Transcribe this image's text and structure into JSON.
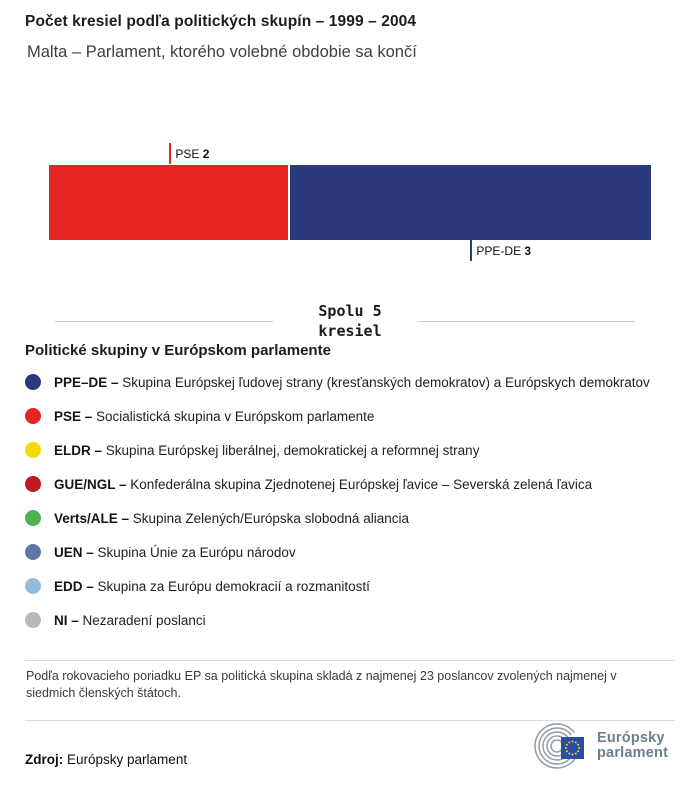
{
  "header": {
    "title": "Počet kresiel podľa politických skupín – 1999 – 2004",
    "subtitle": "Malta – Parlament, ktorého volebné obdobie sa končí"
  },
  "chart_data": {
    "type": "bar",
    "variant": "horizontal-stacked",
    "title": "Počet kresiel podľa politických skupín – 1999 – 2004",
    "region": "Malta",
    "total_seats": 5,
    "total_label_line1": "Spolu 5",
    "total_label_line2": "kresiel",
    "segments": [
      {
        "group": "PSE",
        "seats": 2,
        "color": "#e32422",
        "label_position": "above"
      },
      {
        "group": "PPE-DE",
        "seats": 3,
        "color": "#2c3a7d",
        "label_position": "below"
      }
    ]
  },
  "legend": {
    "heading": "Politické skupiny v Európskom parlamente",
    "items": [
      {
        "id": "ppe-de",
        "abbr": "PPE–DE",
        "name": "Skupina Európskej ľudovej strany (kresťanských demokratov) a Európskych demokratov",
        "color": "#2c3a7d"
      },
      {
        "id": "pse",
        "abbr": "PSE",
        "name": "Socialistická skupina v Európskom parlamente",
        "color": "#e32422"
      },
      {
        "id": "eldr",
        "abbr": "ELDR",
        "name": "Skupina Európskej liberálnej, demokratickej a reformnej strany",
        "color": "#f2da0c"
      },
      {
        "id": "gue-ngl",
        "abbr": "GUE/NGL",
        "name": "Konfederálna skupina Zjednotenej Európskej ľavice – Severská zelená ľavica",
        "color": "#c01a20"
      },
      {
        "id": "verts-ale",
        "abbr": "Verts/ALE",
        "name": "Skupina Zelených/Európska slobodná aliancia",
        "color": "#53b152"
      },
      {
        "id": "uen",
        "abbr": "UEN",
        "name": "Skupina Únie za Európu národov",
        "color": "#6274a4"
      },
      {
        "id": "edd",
        "abbr": "EDD",
        "name": "Skupina za Európu demokracií a rozmanitostí",
        "color": "#95bddb"
      },
      {
        "id": "ni",
        "abbr": "NI",
        "name": "Nezaradení poslanci",
        "color": "#b8b8b8"
      }
    ]
  },
  "footnote": "Podľa rokovacieho poriadku EP sa politická skupina skladá z najmenej 23 poslancov zvolených najmenej v siedmich členských štátoch.",
  "source": {
    "label": "Zdroj:",
    "value": "Európsky parlament"
  },
  "logo": {
    "line1": "Európsky",
    "line2": "parlament",
    "flag_color": "#2a4da4",
    "star_color": "#f7d117",
    "arc_color": "#939ca3"
  }
}
